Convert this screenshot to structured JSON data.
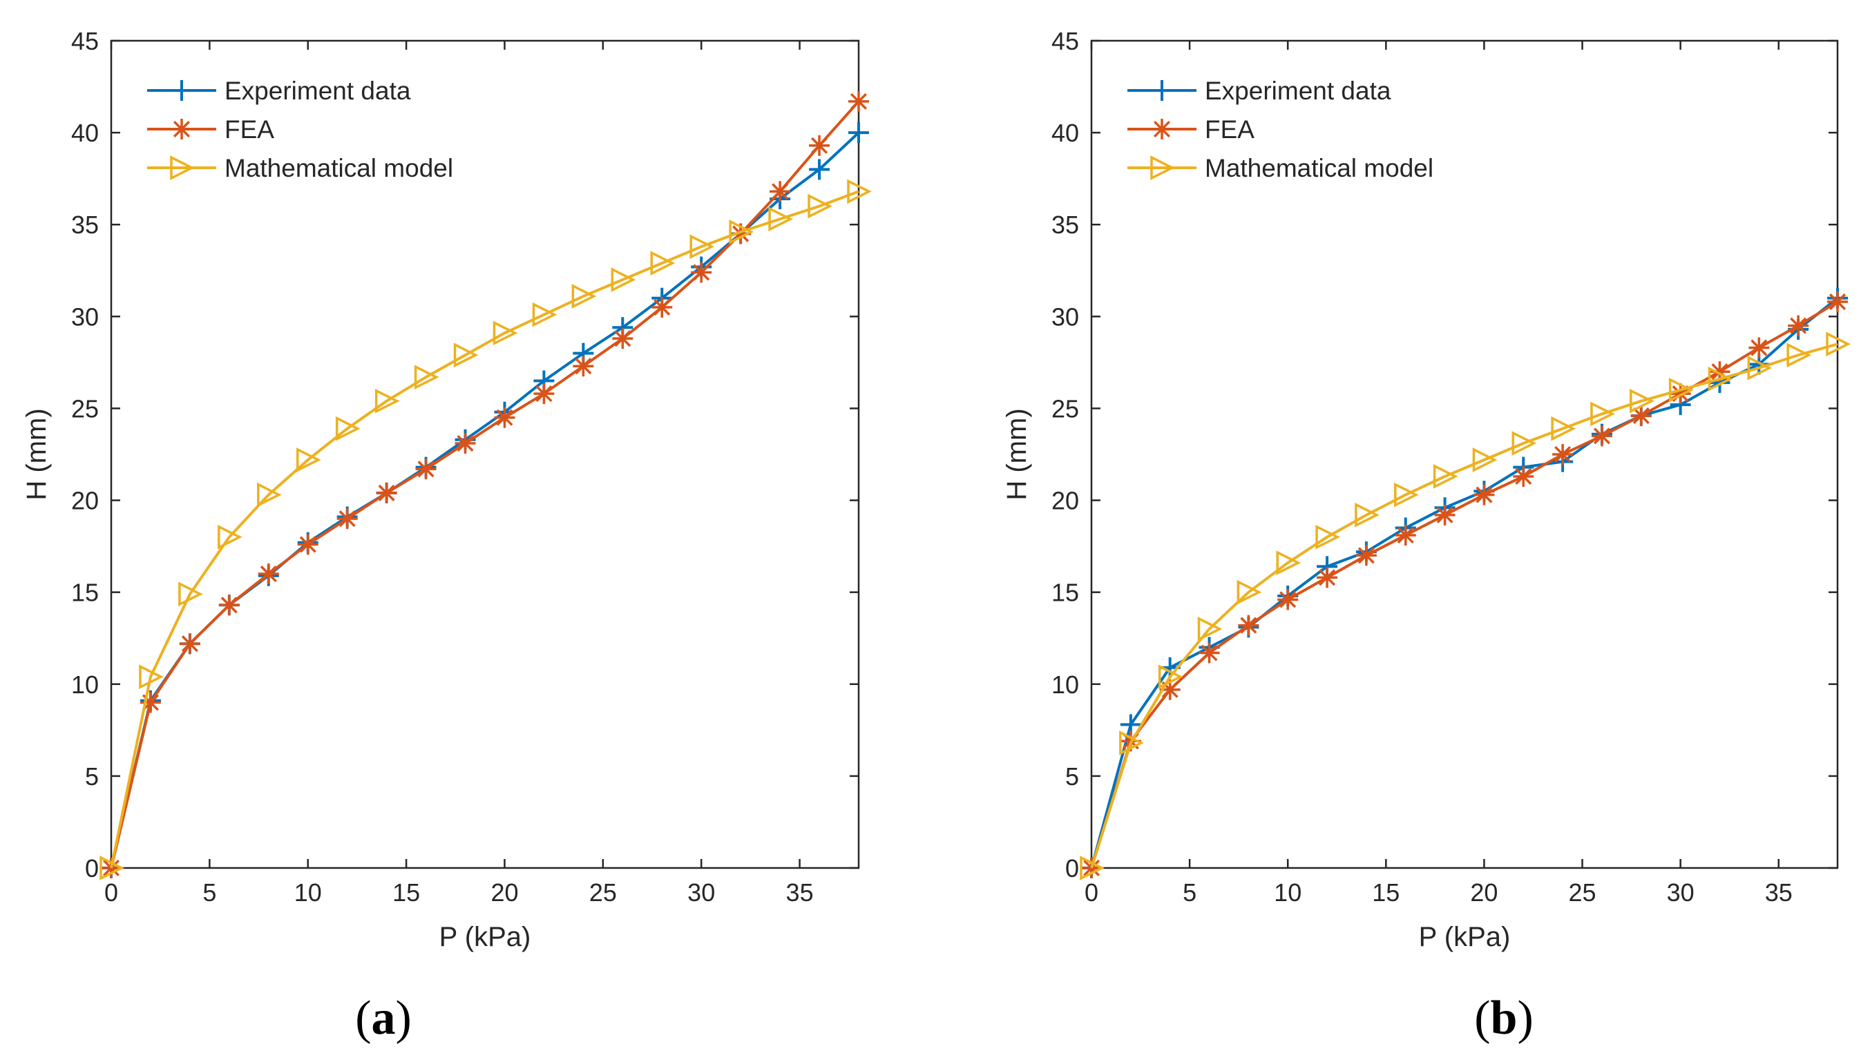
{
  "chart_data": [
    {
      "type": "line",
      "panel_label": "a",
      "xlabel": "P (kPa)",
      "ylabel": "H (mm)",
      "xlim": [
        0,
        38
      ],
      "ylim": [
        0,
        45
      ],
      "xticks": [
        0,
        5,
        10,
        15,
        20,
        25,
        30,
        35
      ],
      "yticks": [
        0,
        5,
        10,
        15,
        20,
        25,
        30,
        35,
        40,
        45
      ],
      "grid": false,
      "legend_position": "top-left",
      "x": [
        0,
        2,
        4,
        6,
        8,
        10,
        12,
        14,
        16,
        18,
        20,
        22,
        24,
        26,
        28,
        30,
        32,
        34,
        36,
        38
      ],
      "series": [
        {
          "name": "Experiment data",
          "color": "#0072BD",
          "marker": "plus",
          "values": [
            0,
            9.1,
            12.2,
            14.3,
            15.9,
            17.7,
            19.1,
            20.4,
            21.8,
            23.3,
            24.8,
            26.5,
            28.0,
            29.4,
            31.0,
            32.7,
            34.5,
            36.4,
            38.0,
            40.0
          ]
        },
        {
          "name": "FEA",
          "color": "#D95319",
          "marker": "asterisk",
          "values": [
            0,
            9.0,
            12.2,
            14.3,
            16.0,
            17.6,
            19.0,
            20.4,
            21.7,
            23.1,
            24.5,
            25.8,
            27.3,
            28.8,
            30.5,
            32.4,
            34.5,
            36.8,
            39.3,
            41.7
          ]
        },
        {
          "name": "Mathematical model",
          "color": "#EDB120",
          "marker": "triangle-right",
          "values": [
            0,
            10.4,
            14.9,
            18.0,
            20.3,
            22.2,
            23.9,
            25.4,
            26.7,
            27.9,
            29.1,
            30.1,
            31.1,
            32.0,
            32.9,
            33.8,
            34.6,
            35.3,
            36.0,
            36.8
          ]
        }
      ]
    },
    {
      "type": "line",
      "panel_label": "b",
      "xlabel": "P (kPa)",
      "ylabel": "H (mm)",
      "xlim": [
        0,
        38
      ],
      "ylim": [
        0,
        45
      ],
      "xticks": [
        0,
        5,
        10,
        15,
        20,
        25,
        30,
        35
      ],
      "yticks": [
        0,
        5,
        10,
        15,
        20,
        25,
        30,
        35,
        40,
        45
      ],
      "grid": false,
      "legend_position": "top-left",
      "x": [
        0,
        2,
        4,
        6,
        8,
        10,
        12,
        14,
        16,
        18,
        20,
        22,
        24,
        26,
        28,
        30,
        32,
        34,
        36,
        38
      ],
      "series": [
        {
          "name": "Experiment data",
          "color": "#0072BD",
          "marker": "plus",
          "values": [
            0,
            7.8,
            10.9,
            12.0,
            13.1,
            14.8,
            16.4,
            17.2,
            18.5,
            19.6,
            20.5,
            21.8,
            22.1,
            23.6,
            24.6,
            25.2,
            26.4,
            27.4,
            29.3,
            31.0
          ]
        },
        {
          "name": "FEA",
          "color": "#D95319",
          "marker": "asterisk",
          "values": [
            0,
            6.9,
            9.7,
            11.7,
            13.2,
            14.6,
            15.8,
            17.0,
            18.1,
            19.2,
            20.3,
            21.3,
            22.5,
            23.5,
            24.6,
            25.8,
            27.0,
            28.3,
            29.5,
            30.8
          ]
        },
        {
          "name": "Mathematical model",
          "color": "#EDB120",
          "marker": "triangle-right",
          "values": [
            0,
            6.8,
            10.4,
            13.0,
            15.0,
            16.6,
            18.0,
            19.2,
            20.3,
            21.3,
            22.2,
            23.1,
            23.9,
            24.7,
            25.4,
            26.0,
            26.6,
            27.2,
            27.9,
            28.5
          ]
        }
      ]
    }
  ]
}
